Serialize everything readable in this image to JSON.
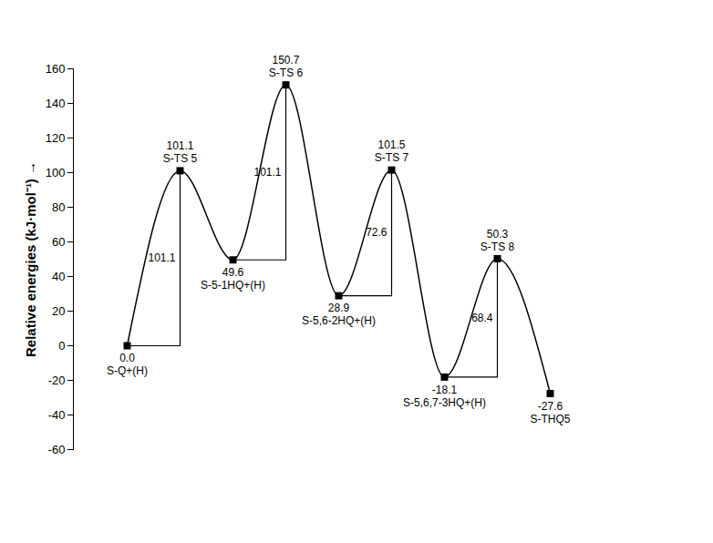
{
  "chart_data": {
    "type": "energy_profile",
    "y_label": "Relative energies (kJ·mol⁻¹)",
    "categories": [
      "S-Q+(H)",
      "S-TS 5",
      "S-5-1HQ+(H)",
      "S-TS 6",
      "S-5,6-2HQ+(H)",
      "S-TS 7",
      "S-5,6,7-3HQ+(H)",
      "S-TS 8",
      "S-THQ5"
    ],
    "values": [
      0.0,
      101.1,
      49.6,
      150.7,
      28.9,
      101.5,
      -18.1,
      50.3,
      -27.6
    ],
    "value_labels": [
      "0.0",
      "101.1",
      "49.6",
      "150.7",
      "28.9",
      "101.5",
      "-18.1",
      "50.3",
      "-27.6"
    ],
    "barriers": [
      {
        "from": 0,
        "to": 1,
        "value": 101.1
      },
      {
        "from": 2,
        "to": 3,
        "value": 101.1
      },
      {
        "from": 4,
        "to": 5,
        "value": 72.6
      },
      {
        "from": 6,
        "to": 7,
        "value": 68.4
      }
    ],
    "ylim": [
      -60,
      160
    ],
    "yticks": [
      -60,
      -40,
      -20,
      0,
      20,
      40,
      60,
      80,
      100,
      120,
      140,
      160
    ],
    "color": "#000000",
    "marker": "square",
    "data_labels": true,
    "tick_labels": "y"
  }
}
